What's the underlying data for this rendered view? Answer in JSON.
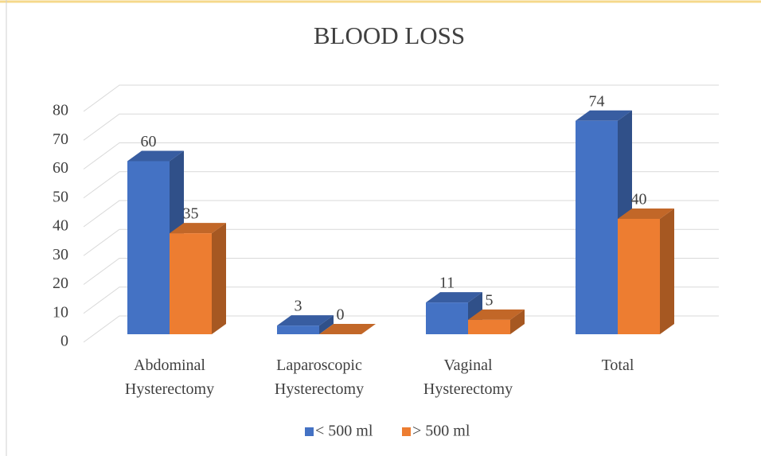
{
  "chart_data": {
    "type": "bar3d",
    "title": "BLOOD LOSS",
    "categories": [
      "Abdominal Hysterectomy",
      "Laparoscopic Hysterectomy",
      "Vaginal Hysterectomy",
      "Total"
    ],
    "series": [
      {
        "name": "< 500 ml",
        "color": "#4472c4",
        "values": [
          60,
          3,
          11,
          74
        ]
      },
      {
        "name": "> 500 ml",
        "color": "#ed7d31",
        "values": [
          35,
          0,
          5,
          40
        ]
      }
    ],
    "ylim": [
      0,
      80
    ],
    "yticks": [
      0,
      10,
      20,
      30,
      40,
      50,
      60,
      70,
      80
    ],
    "grid": true,
    "legend": "bottom"
  }
}
